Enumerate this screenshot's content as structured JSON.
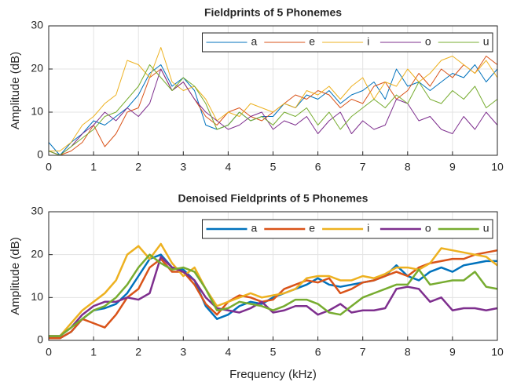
{
  "chart_data": [
    {
      "type": "line",
      "title": "Fieldprints of 5 Phonemes",
      "ylabel": "Amplitude (dB)",
      "x": [
        0,
        0.25,
        0.5,
        0.75,
        1,
        1.25,
        1.5,
        1.75,
        2,
        2.25,
        2.5,
        2.75,
        3,
        3.25,
        3.5,
        3.75,
        4,
        4.25,
        4.5,
        4.75,
        5,
        5.25,
        5.5,
        5.75,
        6,
        6.25,
        6.5,
        6.75,
        7,
        7.25,
        7.5,
        7.75,
        8,
        8.25,
        8.5,
        8.75,
        9,
        9.25,
        9.5,
        9.75,
        10
      ],
      "series": [
        {
          "name": "a",
          "color": "#0072BD",
          "values": [
            3,
            0,
            3,
            5,
            8,
            7,
            9,
            11,
            14,
            19,
            21,
            16,
            18,
            15,
            7,
            6,
            7,
            10,
            8,
            9,
            9,
            12,
            11,
            14,
            13,
            15,
            12,
            14,
            15,
            17,
            13,
            20,
            16,
            17,
            15,
            17,
            19,
            18,
            21,
            17,
            20
          ]
        },
        {
          "name": "e",
          "color": "#D95319",
          "values": [
            1,
            0,
            1,
            3,
            7,
            2,
            5,
            10,
            11,
            18,
            20,
            15,
            17,
            13,
            9,
            7,
            10,
            11,
            9,
            8,
            10,
            12,
            14,
            13,
            15,
            14,
            11,
            13,
            12,
            16,
            17,
            13,
            15,
            19,
            16,
            20,
            18,
            21,
            19,
            23,
            21
          ]
        },
        {
          "name": "i",
          "color": "#EDB120",
          "values": [
            1,
            1,
            3,
            7,
            9,
            12,
            14,
            22,
            21,
            18,
            25,
            17,
            15,
            16,
            13,
            8,
            10,
            9,
            12,
            11,
            10,
            12,
            11,
            15,
            14,
            16,
            13,
            16,
            18,
            13,
            17,
            16,
            20,
            17,
            19,
            22,
            23,
            21,
            19,
            22,
            18
          ]
        },
        {
          "name": "o",
          "color": "#7E2F8E",
          "values": [
            1,
            0,
            2,
            5,
            7,
            10,
            8,
            11,
            9,
            12,
            20,
            15,
            17,
            13,
            10,
            8,
            6,
            7,
            9,
            10,
            6,
            8,
            7,
            9,
            5,
            8,
            10,
            5,
            8,
            6,
            7,
            13,
            12,
            8,
            9,
            6,
            5,
            9,
            6,
            10,
            7
          ]
        },
        {
          "name": "u",
          "color": "#77AC30",
          "values": [
            1,
            0,
            2,
            4,
            6,
            9,
            10,
            13,
            16,
            21,
            18,
            15,
            18,
            16,
            12,
            6,
            7,
            10,
            8,
            9,
            7,
            10,
            9,
            11,
            7,
            10,
            6,
            9,
            11,
            13,
            11,
            14,
            12,
            17,
            13,
            12,
            15,
            13,
            16,
            11,
            13
          ]
        }
      ],
      "xlim": [
        0,
        10
      ],
      "xticks": [
        0,
        1,
        2,
        3,
        4,
        5,
        6,
        7,
        8,
        9,
        10
      ],
      "ylim": [
        0,
        30
      ],
      "yticks": [
        0,
        10,
        20,
        30
      ],
      "grid": true,
      "legend": "top-right"
    },
    {
      "type": "line",
      "title": "Denoised Fieldprints of 5 Phonemes",
      "xlabel": "Frequency (kHz)",
      "ylabel": "Amplitude (dB)",
      "x": [
        0,
        0.25,
        0.5,
        0.75,
        1,
        1.25,
        1.5,
        1.75,
        2,
        2.25,
        2.5,
        2.75,
        3,
        3.25,
        3.5,
        3.75,
        4,
        4.25,
        4.5,
        4.75,
        5,
        5.25,
        5.5,
        5.75,
        6,
        6.25,
        6.5,
        6.75,
        7,
        7.25,
        7.5,
        7.75,
        8,
        8.25,
        8.5,
        8.75,
        9,
        9.25,
        9.5,
        9.75,
        10
      ],
      "series": [
        {
          "name": "a",
          "color": "#0072BD",
          "values": [
            1,
            0.5,
            2,
            5,
            7,
            7.5,
            8.5,
            11,
            15,
            19,
            20,
            17,
            16.5,
            14,
            8,
            5,
            6,
            8,
            9,
            8.5,
            10,
            11,
            12,
            13,
            14.5,
            13,
            12.5,
            13,
            13.5,
            14,
            15,
            17.5,
            15,
            14,
            16,
            17,
            16,
            17.5,
            18,
            18.5,
            18.5
          ]
        },
        {
          "name": "e",
          "color": "#D95319",
          "values": [
            0.5,
            0.5,
            2,
            5,
            4,
            3,
            6,
            10,
            12,
            17,
            19,
            16,
            16,
            13,
            8.5,
            6,
            9,
            10.5,
            10,
            9,
            9.5,
            12,
            13,
            14,
            13.5,
            14.5,
            11,
            12,
            13.5,
            14,
            15,
            16,
            15,
            17,
            18,
            18.5,
            19,
            19,
            20,
            20.5,
            21
          ]
        },
        {
          "name": "i",
          "color": "#EDB120",
          "values": [
            1,
            1,
            4,
            7,
            9,
            11,
            14,
            20,
            22,
            19,
            22.5,
            18,
            15,
            17,
            12,
            8,
            9,
            10,
            11,
            10,
            10.5,
            11,
            12,
            14.5,
            15,
            15,
            14,
            14,
            15,
            14.5,
            15.5,
            17,
            17,
            16.5,
            18,
            21.5,
            21,
            20.5,
            20,
            19.5,
            17.5
          ]
        },
        {
          "name": "o",
          "color": "#7E2F8E",
          "values": [
            1,
            1,
            3,
            6,
            8,
            9,
            9,
            10,
            9.5,
            11,
            19.5,
            17,
            16,
            14,
            10,
            7.5,
            7,
            6.5,
            7.5,
            9,
            6.5,
            7,
            8,
            8,
            6,
            7,
            8.5,
            6.5,
            7,
            7,
            7.5,
            12,
            12.5,
            12,
            9,
            10,
            7,
            7.5,
            7.5,
            7,
            7.5
          ]
        },
        {
          "name": "u",
          "color": "#77AC30",
          "values": [
            1,
            1,
            3,
            5,
            7,
            8,
            10,
            13,
            17,
            20,
            18,
            16.5,
            17,
            16,
            12,
            7,
            7.5,
            9,
            8.5,
            8,
            7,
            8,
            9.5,
            9.5,
            8.5,
            6.5,
            6,
            8,
            10,
            11,
            12,
            13,
            13,
            16.5,
            13,
            13.5,
            14,
            14,
            16,
            12.5,
            12
          ]
        }
      ],
      "xlim": [
        0,
        10
      ],
      "xticks": [
        0,
        1,
        2,
        3,
        4,
        5,
        6,
        7,
        8,
        9,
        10
      ],
      "ylim": [
        0,
        30
      ],
      "yticks": [
        0,
        10,
        20,
        30
      ],
      "grid": true,
      "legend": "top-right"
    }
  ]
}
